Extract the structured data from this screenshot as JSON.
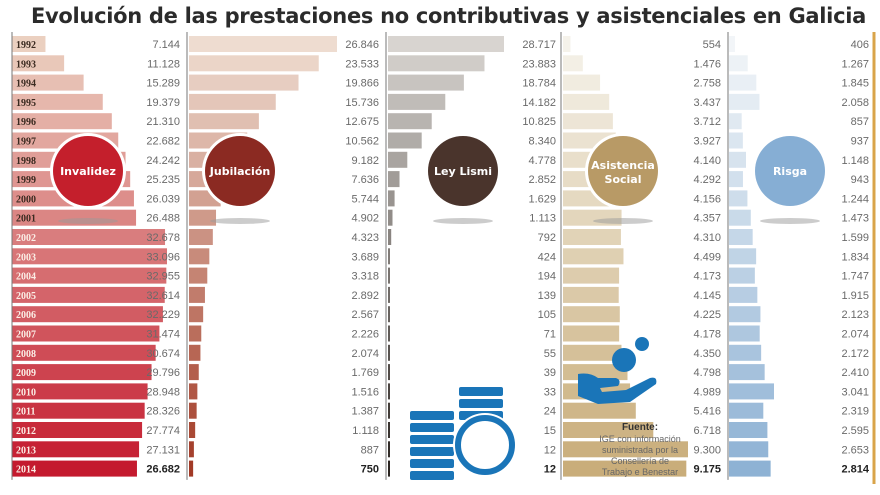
{
  "title": "Evolución de las prestaciones no contributivas y asistenciales en Galicia",
  "chart_data": {
    "type": "bar",
    "orientation": "horizontal",
    "title": "Evolución de las prestaciones no contributivas y asistenciales en Galicia",
    "categories": [
      "1992",
      "1993",
      "1994",
      "1995",
      "1996",
      "1997",
      "1998",
      "1999",
      "2000",
      "2001",
      "2002",
      "2003",
      "2004",
      "2005",
      "2006",
      "2007",
      "2008",
      "2009",
      "2010",
      "2011",
      "2012",
      "2013",
      "2014"
    ],
    "series": [
      {
        "name": "Invalidez",
        "color": "#c8102e",
        "labels": [
          "7.144",
          "11.128",
          "15.289",
          "19.379",
          "21.310",
          "22.682",
          "24.242",
          "25.235",
          "26.039",
          "26.488",
          "32.678",
          "33.096",
          "32.955",
          "32.614",
          "32.229",
          "31.474",
          "30.674",
          "29.796",
          "28.948",
          "28.326",
          "27.774",
          "27.131",
          "26.682"
        ],
        "values": [
          7144,
          11128,
          15289,
          19379,
          21310,
          22682,
          24242,
          25235,
          26039,
          26488,
          32678,
          33096,
          32955,
          32614,
          32229,
          31474,
          30674,
          29796,
          28948,
          28326,
          27774,
          27131,
          26682
        ]
      },
      {
        "name": "Jubilación",
        "color": "#9c2a22",
        "labels": [
          "26.846",
          "23.533",
          "19.866",
          "15.736",
          "12.675",
          "10.562",
          "9.182",
          "7.636",
          "5.744",
          "4.902",
          "4.323",
          "3.689",
          "3.318",
          "2.892",
          "2.567",
          "2.226",
          "2.074",
          "1.769",
          "1.516",
          "1.387",
          "1.118",
          "887",
          "750"
        ],
        "values": [
          26846,
          23533,
          19866,
          15736,
          12675,
          10562,
          9182,
          7636,
          5744,
          4902,
          4323,
          3689,
          3318,
          2892,
          2567,
          2226,
          2074,
          1769,
          1516,
          1387,
          1118,
          887,
          750
        ]
      },
      {
        "name": "Ley Lismi",
        "color": "#4a3a33",
        "labels": [
          "28.717",
          "23.883",
          "18.784",
          "14.182",
          "10.825",
          "8.340",
          "4.778",
          "2.852",
          "1.629",
          "1.113",
          "792",
          "424",
          "194",
          "139",
          "105",
          "71",
          "55",
          "39",
          "33",
          "24",
          "15",
          "12",
          "12"
        ],
        "values": [
          28717,
          23883,
          18784,
          14182,
          10825,
          8340,
          4778,
          2852,
          1629,
          1113,
          792,
          424,
          194,
          139,
          105,
          71,
          55,
          39,
          33,
          24,
          15,
          12,
          12
        ]
      },
      {
        "name": "Asistencia Social",
        "color": "#c9a86a",
        "labels": [
          "554",
          "1.476",
          "2.758",
          "3.437",
          "3.712",
          "3.927",
          "4.140",
          "4.292",
          "4.156",
          "4.357",
          "4.310",
          "4.499",
          "4.173",
          "4.145",
          "4.225",
          "4.178",
          "4.350",
          "4.798",
          "4.989",
          "5.416",
          "6.718",
          "9.300",
          "9.175"
        ],
        "values": [
          554,
          1476,
          2758,
          3437,
          3712,
          3927,
          4140,
          4292,
          4156,
          4357,
          4310,
          4499,
          4173,
          4145,
          4225,
          4178,
          4350,
          4798,
          4989,
          5416,
          6718,
          9300,
          9175
        ]
      },
      {
        "name": "Risga",
        "color": "#8fb3d6",
        "labels": [
          "406",
          "1.267",
          "1.845",
          "2.058",
          "857",
          "937",
          "1.148",
          "943",
          "1.244",
          "1.473",
          "1.599",
          "1.834",
          "1.747",
          "1.915",
          "2.123",
          "2.074",
          "2.172",
          "2.410",
          "3.041",
          "2.319",
          "2.595",
          "2.653",
          "2.814"
        ],
        "values": [
          406,
          1267,
          1845,
          2058,
          857,
          937,
          1148,
          943,
          1244,
          1473,
          1599,
          1834,
          1747,
          1915,
          2123,
          2074,
          2172,
          2410,
          3041,
          2319,
          2595,
          2653,
          2814
        ]
      }
    ],
    "xlabel": "",
    "ylabel": "",
    "grid": false,
    "legend": "badges"
  },
  "badges": [
    {
      "label": "Invalidez",
      "color": "#c41f2c"
    },
    {
      "label": "Jubilación",
      "color": "#8b2a22"
    },
    {
      "label": "Ley Lismi",
      "color": "#4a342c"
    },
    {
      "label": "Asistencia",
      "label2": "Social",
      "color": "#b89a66"
    },
    {
      "label": "Risga",
      "color": "#86aed4"
    }
  ],
  "source": {
    "title": "Fuente:",
    "lines": [
      "IGE con información",
      "suministrada por la",
      "Consellería de",
      "Trabajo e Benestar"
    ]
  },
  "icons": {
    "coins": "coins-stack-icon",
    "hand": "hand-coin-icon",
    "accent": "#1a75b8"
  }
}
